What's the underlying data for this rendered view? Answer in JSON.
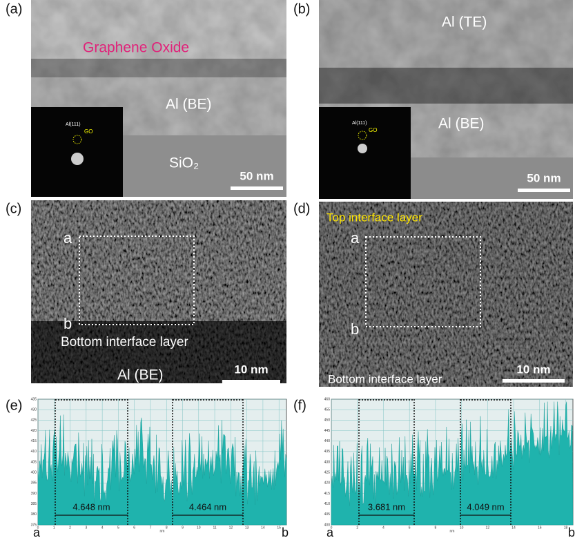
{
  "panels": [
    {
      "label": "(a)",
      "annotation": "Graphene Oxide",
      "region_1": "Al (BE)",
      "region_2": "SiO₂",
      "inset": {
        "spot": "Al(111)",
        "ring": "GO"
      },
      "scale_bar": "50 nm"
    },
    {
      "label": "(b)",
      "region_1": "Al (TE)",
      "region_2": "Al (BE)",
      "inset": {
        "spot": "Al(111)",
        "ring": "GO"
      },
      "scale_bar": "50 nm"
    },
    {
      "label": "(c)",
      "box_start": "a",
      "box_end": "b",
      "region_1": "Bottom interface layer",
      "region_2": "Al (BE)",
      "scale_bar": "10 nm"
    },
    {
      "label": "(d)",
      "annotation": "Top interface layer",
      "box_start": "a",
      "box_end": "b",
      "region_1": "Bottom interface layer",
      "scale_bar": "10 nm"
    },
    {
      "label": "(e)",
      "spacing_1": "4.648 nm",
      "spacing_2": "4.464 nm",
      "start": "a",
      "end": "b",
      "x_axis_label": "nm",
      "yticks": [
        "435",
        "430",
        "425",
        "420",
        "415",
        "410",
        "405",
        "400",
        "395",
        "390",
        "385",
        "380",
        "375"
      ],
      "xticks": [
        "0",
        "1",
        "2",
        "3",
        "4",
        "5",
        "6",
        "7",
        "8",
        "9",
        "10",
        "11",
        "12",
        "13",
        "14",
        "15"
      ]
    },
    {
      "label": "(f)",
      "spacing_1": "3.681 nm",
      "spacing_2": "4.049 nm",
      "start": "a",
      "end": "b",
      "x_axis_label": "nm",
      "yticks": [
        "460",
        "455",
        "450",
        "445",
        "440",
        "435",
        "430",
        "425",
        "420",
        "415",
        "410",
        "405",
        "400"
      ],
      "xticks": [
        "0",
        "2",
        "4",
        "6",
        "8",
        "10",
        "12",
        "14",
        "16",
        "18"
      ]
    }
  ]
}
